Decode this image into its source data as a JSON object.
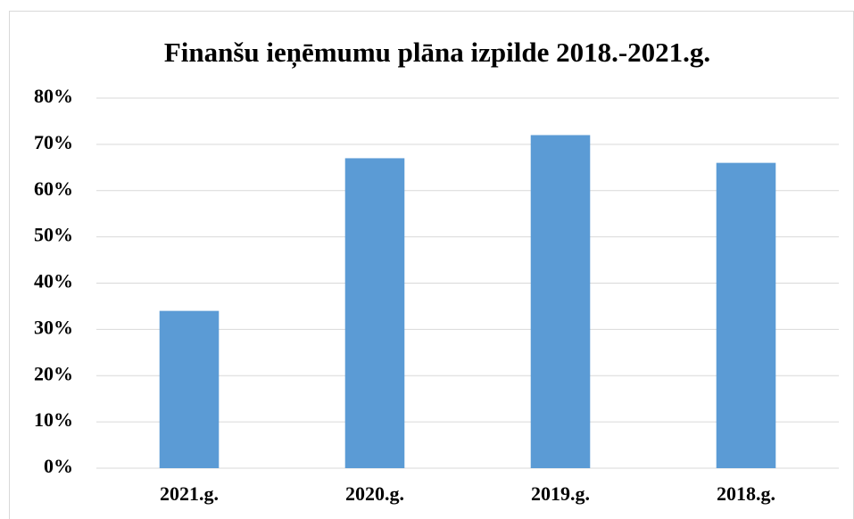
{
  "chart_data": {
    "type": "bar",
    "title": "Finanšu ieņēmumu plāna izpilde 2018.-2021.g.",
    "categories": [
      "2021.g.",
      "2020.g.",
      "2019.g.",
      "2018.g."
    ],
    "values": [
      34,
      67,
      72,
      66
    ],
    "color": "#5b9bd5",
    "ylim": [
      0,
      80
    ],
    "yticks": [
      {
        "value": 0,
        "label": "0%"
      },
      {
        "value": 10,
        "label": "10%"
      },
      {
        "value": 20,
        "label": "20%"
      },
      {
        "value": 30,
        "label": "30%"
      },
      {
        "value": 40,
        "label": "40%"
      },
      {
        "value": 50,
        "label": "50%"
      },
      {
        "value": 60,
        "label": "60%"
      },
      {
        "value": 70,
        "label": "70%"
      },
      {
        "value": 80,
        "label": "80%"
      }
    ],
    "grid": true
  }
}
